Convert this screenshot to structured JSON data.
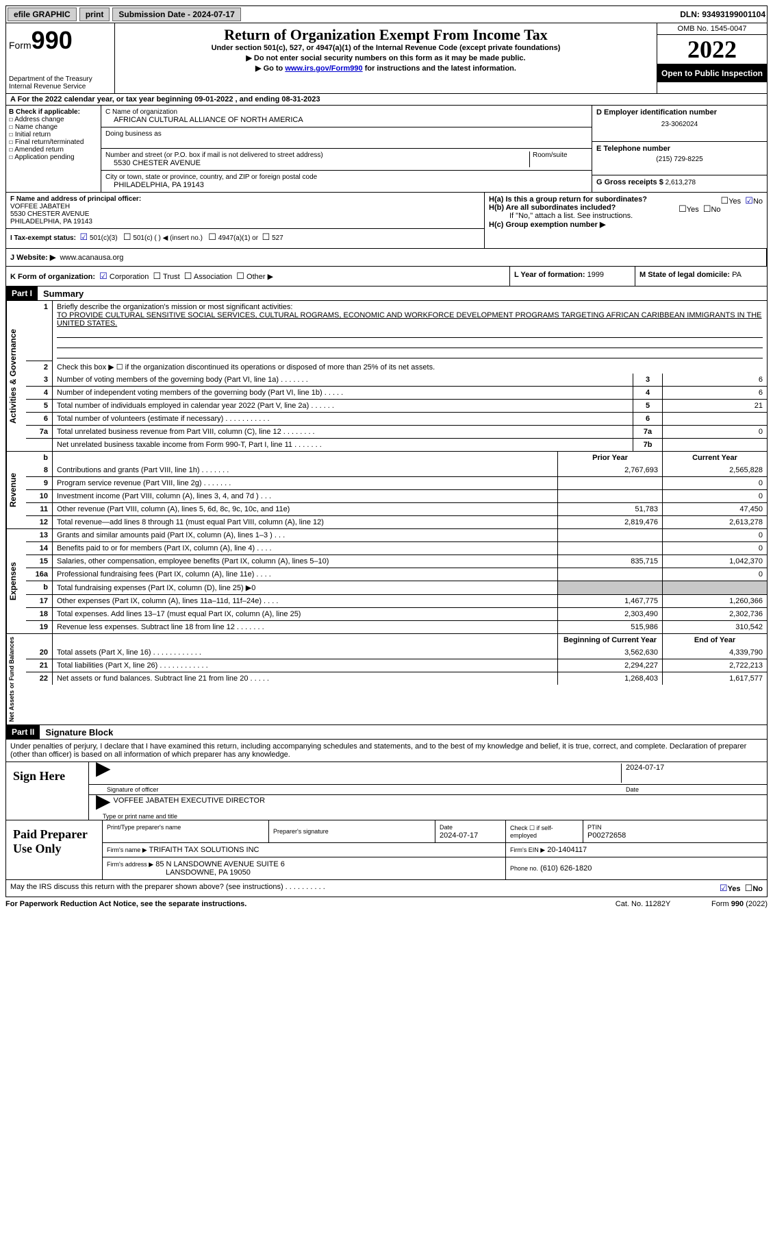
{
  "topbar": {
    "efile": "efile GRAPHIC",
    "print": "print",
    "submission": "Submission Date - 2024-07-17",
    "dln": "DLN: 93493199001104"
  },
  "header": {
    "form_prefix": "Form",
    "form_number": "990",
    "dept": "Department of the Treasury",
    "irs": "Internal Revenue Service",
    "title": "Return of Organization Exempt From Income Tax",
    "subtitle": "Under section 501(c), 527, or 4947(a)(1) of the Internal Revenue Code (except private foundations)",
    "note1": "▶ Do not enter social security numbers on this form as it may be made public.",
    "note2_pre": "▶ Go to ",
    "note2_link": "www.irs.gov/Form990",
    "note2_post": " for instructions and the latest information.",
    "omb": "OMB No. 1545-0047",
    "year": "2022",
    "open": "Open to Public Inspection"
  },
  "row_a": "A   For the 2022 calendar year, or tax year beginning 09-01-2022    , and ending 08-31-2023",
  "col_b": {
    "label": "B Check if applicable:",
    "items": [
      "Address change",
      "Name change",
      "Initial return",
      "Final return/terminated",
      "Amended return",
      "Application pending"
    ]
  },
  "col_c": {
    "name_label": "C Name of organization",
    "name": "AFRICAN CULTURAL ALLIANCE OF NORTH AMERICA",
    "dba_label": "Doing business as",
    "addr_label": "Number and street (or P.O. box if mail is not delivered to street address)",
    "room_label": "Room/suite",
    "addr": "5530 CHESTER AVENUE",
    "city_label": "City or town, state or province, country, and ZIP or foreign postal code",
    "city": "PHILADELPHIA, PA  19143"
  },
  "col_d": {
    "ein_label": "D Employer identification number",
    "ein": "23-3062024",
    "phone_label": "E Telephone number",
    "phone": "(215) 729-8225",
    "gross_label": "G Gross receipts $",
    "gross": "2,613,278"
  },
  "col_f": {
    "label": "F  Name and address of principal officer:",
    "name": "VOFFEE JABATEH",
    "addr1": "5530 CHESTER AVENUE",
    "addr2": "PHILADELPHIA, PA  19143"
  },
  "col_h": {
    "ha": "H(a)  Is this a group return for subordinates?",
    "hb": "H(b)  Are all subordinates included?",
    "hb_note": "If \"No,\" attach a list. See instructions.",
    "hc": "H(c)  Group exemption number ▶",
    "yes": "Yes",
    "no": "No"
  },
  "row_i": {
    "label": "I   Tax-exempt status:",
    "c3": "501(c)(3)",
    "c_other": "501(c) (  ) ◀ (insert no.)",
    "a1": "4947(a)(1) or",
    "s527": "527"
  },
  "row_j": {
    "label": "J   Website: ▶",
    "value": "www.acanausa.org"
  },
  "row_k": {
    "label": "K Form of organization:",
    "corp": "Corporation",
    "trust": "Trust",
    "assoc": "Association",
    "other": "Other ▶",
    "l_label": "L Year of formation:",
    "l_val": "1999",
    "m_label": "M State of legal domicile:",
    "m_val": "PA"
  },
  "parts": {
    "p1": "Part I",
    "p1_title": "Summary",
    "p2": "Part II",
    "p2_title": "Signature Block"
  },
  "summary": {
    "q1": "Briefly describe the organization's mission or most significant activities:",
    "mission": "TO PROVIDE CULTURAL SENSITIVE SOCIAL SERVICES, CULTURAL ROGRAMS, ECONOMIC AND WORKFORCE DEVELOPMENT PROGRAMS TARGETING AFRICAN CARIBBEAN IMMIGRANTS IN THE UNITED STATES.",
    "q2": "Check this box ▶ ☐  if the organization discontinued its operations or disposed of more than 25% of its net assets.",
    "lines_gov": [
      {
        "n": "3",
        "t": "Number of voting members of the governing body (Part VI, line 1a)   .    .    .    .    .    .    .",
        "box": "3",
        "v": "6"
      },
      {
        "n": "4",
        "t": "Number of independent voting members of the governing body (Part VI, line 1b)    .    .    .    .    .",
        "box": "4",
        "v": "6"
      },
      {
        "n": "5",
        "t": "Total number of individuals employed in calendar year 2022 (Part V, line 2a)    .    .    .    .    .    .",
        "box": "5",
        "v": "21"
      },
      {
        "n": "6",
        "t": "Total number of volunteers (estimate if necessary)     .     .     .     .     .     .     .     .     .     .     .",
        "box": "6",
        "v": ""
      },
      {
        "n": "7a",
        "t": "Total unrelated business revenue from Part VIII, column (C), line 12    .    .    .    .    .    .    .    .",
        "box": "7a",
        "v": "0"
      },
      {
        "n": "",
        "t": "Net unrelated business taxable income from Form 990-T, Part I, line 11    .    .    .    .    .    .    .",
        "box": "7b",
        "v": ""
      }
    ],
    "col_prior": "Prior Year",
    "col_current": "Current Year",
    "revenue": [
      {
        "n": "8",
        "t": "Contributions and grants (Part VIII, line 1h)    .    .    .    .    .    .    .",
        "p": "2,767,693",
        "c": "2,565,828"
      },
      {
        "n": "9",
        "t": "Program service revenue (Part VIII, line 2g)    .    .    .    .    .    .    .",
        "p": "",
        "c": "0"
      },
      {
        "n": "10",
        "t": "Investment income (Part VIII, column (A), lines 3, 4, and 7d )    .    .    .",
        "p": "",
        "c": "0"
      },
      {
        "n": "11",
        "t": "Other revenue (Part VIII, column (A), lines 5, 6d, 8c, 9c, 10c, and 11e)",
        "p": "51,783",
        "c": "47,450"
      },
      {
        "n": "12",
        "t": "Total revenue—add lines 8 through 11 (must equal Part VIII, column (A), line 12)",
        "p": "2,819,476",
        "c": "2,613,278"
      }
    ],
    "expenses": [
      {
        "n": "13",
        "t": "Grants and similar amounts paid (Part IX, column (A), lines 1–3 )   .   .   .",
        "p": "",
        "c": "0"
      },
      {
        "n": "14",
        "t": "Benefits paid to or for members (Part IX, column (A), line 4)    .    .    .    .",
        "p": "",
        "c": "0"
      },
      {
        "n": "15",
        "t": "Salaries, other compensation, employee benefits (Part IX, column (A), lines 5–10)",
        "p": "835,715",
        "c": "1,042,370"
      },
      {
        "n": "16a",
        "t": "Professional fundraising fees (Part IX, column (A), line 11e)    .    .    .    .",
        "p": "",
        "c": "0"
      },
      {
        "n": "b",
        "t": "Total fundraising expenses (Part IX, column (D), line 25) ▶0",
        "p": "SHADE",
        "c": "SHADE"
      },
      {
        "n": "17",
        "t": "Other expenses (Part IX, column (A), lines 11a–11d, 11f–24e)    .    .    .    .",
        "p": "1,467,775",
        "c": "1,260,366"
      },
      {
        "n": "18",
        "t": "Total expenses. Add lines 13–17 (must equal Part IX, column (A), line 25)",
        "p": "2,303,490",
        "c": "2,302,736"
      },
      {
        "n": "19",
        "t": "Revenue less expenses. Subtract line 18 from line 12   .   .   .   .   .   .   .",
        "p": "515,986",
        "c": "310,542"
      }
    ],
    "col_beg": "Beginning of Current Year",
    "col_end": "End of Year",
    "netassets": [
      {
        "n": "20",
        "t": "Total assets (Part X, line 16)   .    .    .    .    .    .    .    .    .    .    .    .",
        "p": "3,562,630",
        "c": "4,339,790"
      },
      {
        "n": "21",
        "t": "Total liabilities (Part X, line 26)   .   .   .   .   .   .   .   .   .   .   .   .",
        "p": "2,294,227",
        "c": "2,722,213"
      },
      {
        "n": "22",
        "t": "Net assets or fund balances. Subtract line 21 from line 20   .   .   .   .   .",
        "p": "1,268,403",
        "c": "1,617,577"
      }
    ],
    "side_gov": "Activities & Governance",
    "side_rev": "Revenue",
    "side_exp": "Expenses",
    "side_net": "Net Assets or Fund Balances"
  },
  "sig": {
    "penalties": "Under penalties of perjury, I declare that I have examined this return, including accompanying schedules and statements, and to the best of my knowledge and belief, it is true, correct, and complete. Declaration of preparer (other than officer) is based on all information of which preparer has any knowledge.",
    "sign_here": "Sign Here",
    "sig_officer": "Signature of officer",
    "sig_date": "2024-07-17",
    "date_label": "Date",
    "officer_name": "VOFFEE JABATEH  EXECUTIVE DIRECTOR",
    "type_name": "Type or print name and title"
  },
  "prep": {
    "label": "Paid Preparer Use Only",
    "print_name_label": "Print/Type preparer's name",
    "prep_sig_label": "Preparer's signature",
    "date_label": "Date",
    "date": "2024-07-17",
    "check_label": "Check ☐ if self-employed",
    "ptin_label": "PTIN",
    "ptin": "P00272658",
    "firm_name_label": "Firm's name    ▶",
    "firm_name": "TRIFAITH TAX SOLUTIONS INC",
    "firm_ein_label": "Firm's EIN ▶",
    "firm_ein": "20-1404117",
    "firm_addr_label": "Firm's address ▶",
    "firm_addr1": "85 N LANSDOWNE AVENUE SUITE 6",
    "firm_addr2": "LANSDOWNE, PA  19050",
    "phone_label": "Phone no.",
    "phone": "(610) 626-1820"
  },
  "footer": {
    "discuss": "May the IRS discuss this return with the preparer shown above? (see instructions)    .    .    .    .    .    .    .    .    .    .",
    "yes": "Yes",
    "no": "No",
    "paperwork": "For Paperwork Reduction Act Notice, see the separate instructions.",
    "cat": "Cat. No. 11282Y",
    "form": "Form 990 (2022)"
  }
}
